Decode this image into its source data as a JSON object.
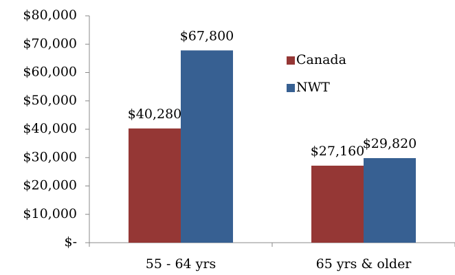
{
  "chart_data": {
    "type": "bar",
    "categories": [
      "55 - 64 yrs",
      "65 yrs & older"
    ],
    "series": [
      {
        "name": "Canada",
        "color": "#953735",
        "values": [
          40280,
          27160
        ],
        "value_labels": [
          "$40,280",
          "$27,160"
        ]
      },
      {
        "name": "NWT",
        "color": "#376092",
        "values": [
          67800,
          29820
        ],
        "value_labels": [
          "$67,800",
          "$29,820"
        ]
      }
    ],
    "ylim": [
      0,
      80000
    ],
    "yticks": [
      {
        "value": 0,
        "label": "$-"
      },
      {
        "value": 10000,
        "label": "$10,000"
      },
      {
        "value": 20000,
        "label": "$20,000"
      },
      {
        "value": 30000,
        "label": "$30,000"
      },
      {
        "value": 40000,
        "label": "$40,000"
      },
      {
        "value": 50000,
        "label": "$50,000"
      },
      {
        "value": 60000,
        "label": "$60,000"
      },
      {
        "value": 70000,
        "label": "$70,000"
      },
      {
        "value": 80000,
        "label": "$80,000"
      }
    ],
    "grid": false
  }
}
